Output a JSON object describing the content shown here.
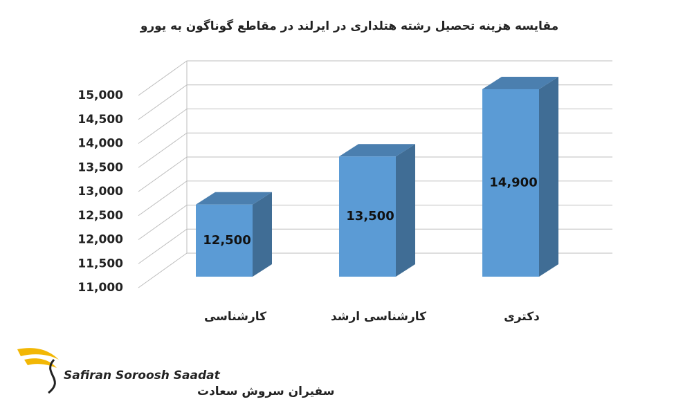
{
  "chart_data": {
    "type": "bar3d",
    "title": "مقایسه هزینه تحصیل رشته هتلداری در ایرلند در مقاطع گوناگون  به یورو",
    "categories": [
      "کارشناسی",
      "کارشناسی ارشد",
      "دکتری"
    ],
    "values": [
      12500,
      13500,
      14900
    ],
    "value_labels": [
      "12,500",
      "13,500",
      "14,900"
    ],
    "color": "#5b9bd5",
    "ylim": [
      11000,
      15000
    ],
    "yticks": [
      {
        "value": 11000,
        "label": "11,000"
      },
      {
        "value": 11500,
        "label": "11,500"
      },
      {
        "value": 12000,
        "label": "12,000"
      },
      {
        "value": 12500,
        "label": "12,500"
      },
      {
        "value": 13000,
        "label": "13,000"
      },
      {
        "value": 13500,
        "label": "13,500"
      },
      {
        "value": 14000,
        "label": "14,000"
      },
      {
        "value": 14500,
        "label": "14,500"
      },
      {
        "value": 15000,
        "label": "15,000"
      }
    ],
    "grid": true,
    "logo_text": [
      "Safiran Soroosh Saadat",
      "سفیران سروش سعادت"
    ]
  }
}
